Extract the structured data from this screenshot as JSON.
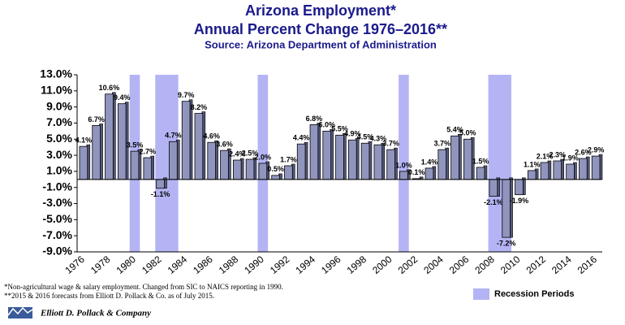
{
  "chart_data": {
    "type": "bar",
    "title": "Arizona Employment*",
    "subtitle": "Annual Percent Change 1976–2016**",
    "source": "Source: Arizona Department of Administration",
    "categories": [
      "1976",
      null,
      "1978",
      null,
      "1980",
      null,
      "1982",
      null,
      "1984",
      null,
      "1986",
      null,
      "1988",
      null,
      "1990",
      null,
      "1992",
      null,
      "1994",
      null,
      "1996",
      null,
      "1998",
      null,
      "2000",
      null,
      "2002",
      null,
      "2004",
      null,
      "2006",
      null,
      "2008",
      null,
      "2010",
      null,
      "2012",
      null,
      "2014",
      null,
      "2016"
    ],
    "values": [
      4.1,
      6.7,
      10.6,
      9.4,
      3.5,
      2.7,
      -1.1,
      4.7,
      9.7,
      8.2,
      4.6,
      3.6,
      2.4,
      2.5,
      2.0,
      0.5,
      1.7,
      4.4,
      6.8,
      6.0,
      5.5,
      4.9,
      4.5,
      4.3,
      3.7,
      1.0,
      0.1,
      1.4,
      3.7,
      5.4,
      5.0,
      1.5,
      -2.1,
      -7.2,
      -1.9,
      1.1,
      2.1,
      2.3,
      1.9,
      2.6,
      2.9
    ],
    "value_labels": [
      "4.1%",
      "6.7%",
      "10.6%",
      "9.4%",
      "3.5%",
      "2.7%",
      "-1.1%",
      "4.7%",
      "9.7%",
      "8.2%",
      "4.6%",
      "3.6%",
      "2.4%",
      "2.5%",
      "2.0%",
      "0.5%",
      "1.7%",
      "4.4%",
      "6.8%",
      "6.0%",
      "5.5%",
      "4.9%",
      "4.5%",
      "4.3%",
      "3.7%",
      "1.0%",
      "0.1%",
      "1.4%",
      "3.7%",
      "5.4%",
      "5.0%",
      "1.5%",
      "-2.1%",
      "-7.2%",
      "-1.9%",
      "1.1%",
      "2.1%",
      "2.3%",
      "1.9%",
      "2.6%",
      "2.9%"
    ],
    "color": "#9095bd",
    "ylim": [
      -9,
      13
    ],
    "yticks": [
      {
        "value": -9,
        "label": "-9.0%"
      },
      {
        "value": -7,
        "label": "-7.0%"
      },
      {
        "value": -5,
        "label": "-5.0%"
      },
      {
        "value": -3,
        "label": "-3.0%"
      },
      {
        "value": -1,
        "label": "-1.0%"
      },
      {
        "value": 1,
        "label": "1.0%"
      },
      {
        "value": 3,
        "label": "3.0%"
      },
      {
        "value": 5,
        "label": "5.0%"
      },
      {
        "value": 7,
        "label": "7.0%"
      },
      {
        "value": 9,
        "label": "9.0%"
      },
      {
        "value": 11,
        "label": "11.0%"
      },
      {
        "value": 13,
        "label": "13.0%"
      }
    ],
    "grid": false,
    "recessions": [
      [
        "1980",
        "1980"
      ],
      [
        "1982",
        "1983"
      ],
      [
        "1990",
        "1990"
      ],
      [
        "2001",
        "2001"
      ],
      [
        "2008",
        "2009"
      ]
    ],
    "recession_color": "#b4b4f4",
    "recession_label": "Recession Periods",
    "footnotes": [
      "*Non-agricultural wage & salary employment.  Changed from SIC to NAICS  reporting in 1990.",
      "**2015 & 2016 forecasts from Elliott D. Pollack & Co. as of July 2015."
    ],
    "company": "Elliott D. Pollack & Company"
  }
}
